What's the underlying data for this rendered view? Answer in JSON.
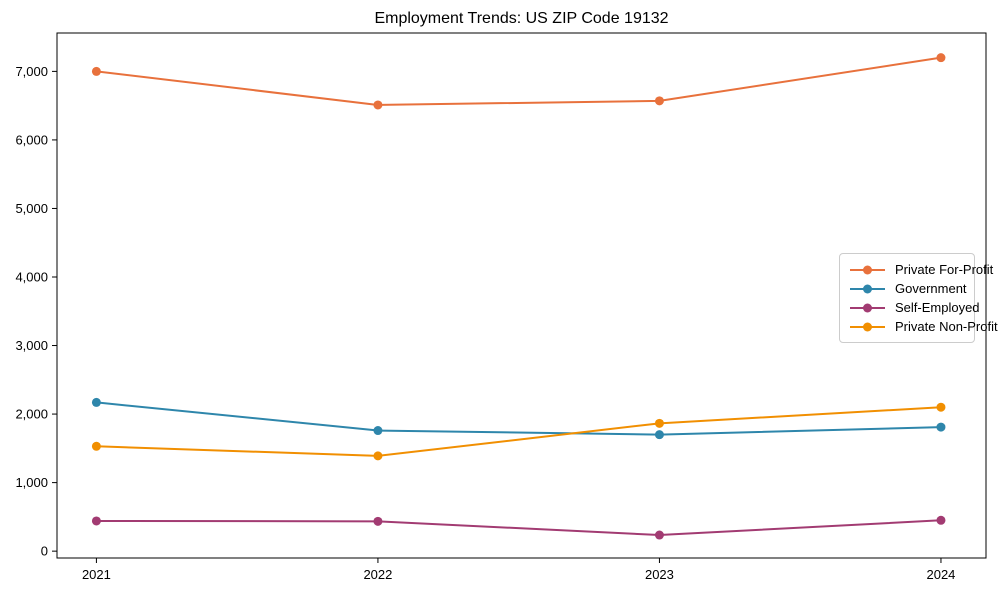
{
  "chart_data": {
    "type": "line",
    "title": "Employment Trends: US ZIP Code 19132",
    "x": [
      2021,
      2022,
      2023,
      2024
    ],
    "categories": [
      "2021",
      "2022",
      "2023",
      "2024"
    ],
    "series": [
      {
        "name": "Private For-Profit",
        "color": "#E8713C",
        "values": [
          7000,
          6510,
          6570,
          7200
        ]
      },
      {
        "name": "Government",
        "color": "#2E86AB",
        "values": [
          2170,
          1760,
          1700,
          1810
        ]
      },
      {
        "name": "Self-Employed",
        "color": "#A23B72",
        "values": [
          440,
          435,
          235,
          450
        ]
      },
      {
        "name": "Private Non-Profit",
        "color": "#F18F01",
        "values": [
          1530,
          1390,
          1865,
          2100
        ]
      }
    ],
    "xlabel": "",
    "ylabel": "",
    "y_ticks": [
      0,
      1000,
      2000,
      3000,
      4000,
      5000,
      6000,
      7000
    ],
    "y_tick_labels": [
      "0",
      "1,000",
      "2,000",
      "3,000",
      "4,000",
      "5,000",
      "6,000",
      "7,000"
    ],
    "xlim": [
      2020.86,
      2024.16
    ],
    "ylim": [
      -100,
      7560
    ],
    "grid": false,
    "legend_position": "center right",
    "marker": "circle",
    "line_width": 2,
    "marker_radius": 4.5,
    "axis_color": "#000000",
    "background_color": "#ffffff"
  }
}
